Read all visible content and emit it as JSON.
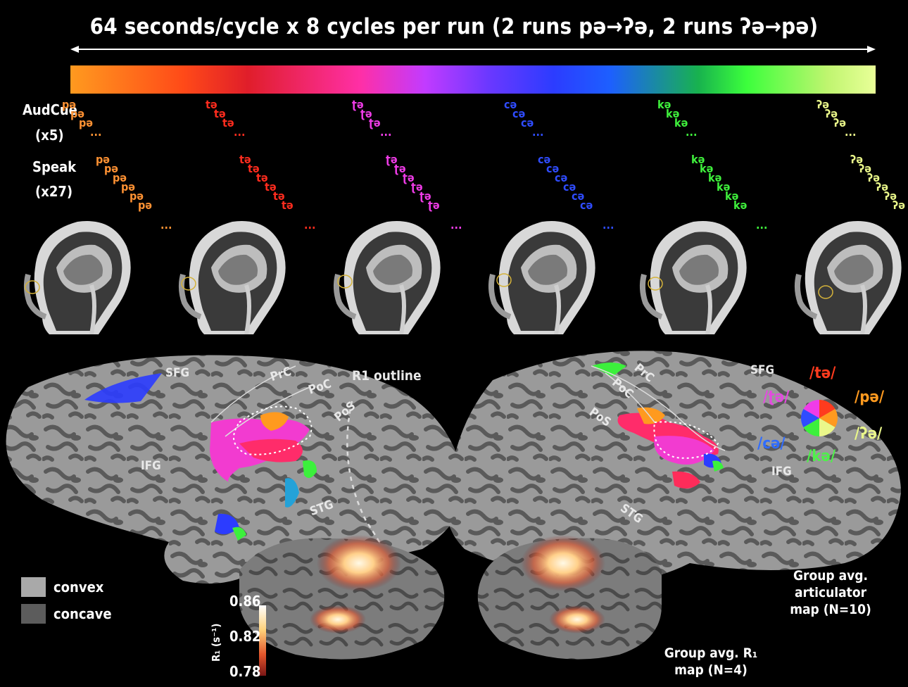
{
  "title": "64 seconds/cycle x 8 cycles per run (2 runs pə→ʔə, 2 runs ʔə→pə)",
  "row_labels": {
    "audcue": "AudCue",
    "audcue_count": "(x5)",
    "speak": "Speak",
    "speak_count": "(x27)"
  },
  "syllable_groups": [
    {
      "syllable": "pə",
      "ellipsis": "...",
      "color": "#ff9233"
    },
    {
      "syllable": "tə",
      "ellipsis": "...",
      "color": "#ff2c1e"
    },
    {
      "syllable": "ʈə",
      "ellipsis": "...",
      "color": "#f03ce8"
    },
    {
      "syllable": "cə",
      "ellipsis": "...",
      "color": "#2f4cff"
    },
    {
      "syllable": "kə",
      "ellipsis": "...",
      "color": "#3ff03c"
    },
    {
      "syllable": "ʔə",
      "ellipsis": "...",
      "color": "#eaf78a"
    }
  ],
  "brain_labels": {
    "sfg_left": "SFG",
    "prc_left": "PrC",
    "poc_left": "PoC",
    "pos_left": "PoS",
    "r1_outline": "R1 outline",
    "ifg_left": "IFG",
    "stg_left": "STG",
    "sfg_right": "SFG",
    "prc_right": "PrC",
    "poc_right": "PoC",
    "pos_right": "PoS",
    "ifg_right": "IFG",
    "stg_right": "STG"
  },
  "phoneme_wheel": {
    "te": "/tə/",
    "pe": "/pə/",
    "retroflex": "/ʈə/",
    "glottal": "/ʔə/",
    "ce": "/cə/",
    "ke": "/kə/"
  },
  "legend": {
    "convex": "convex",
    "concave": "concave"
  },
  "colorbar_r1": {
    "label": "R₁ (s⁻¹)",
    "ticks": [
      "0.86",
      "0.82",
      "0.78"
    ]
  },
  "captions": {
    "articulator_line1": "Group avg. articulator",
    "articulator_line2": "map (N=10)",
    "r1_line1": "Group avg. R₁",
    "r1_line2": "map (N=4)"
  },
  "colors": {
    "background": "#000000",
    "cortex_convex": "#a9a9a9",
    "cortex_concave": "#5c5c5c"
  }
}
